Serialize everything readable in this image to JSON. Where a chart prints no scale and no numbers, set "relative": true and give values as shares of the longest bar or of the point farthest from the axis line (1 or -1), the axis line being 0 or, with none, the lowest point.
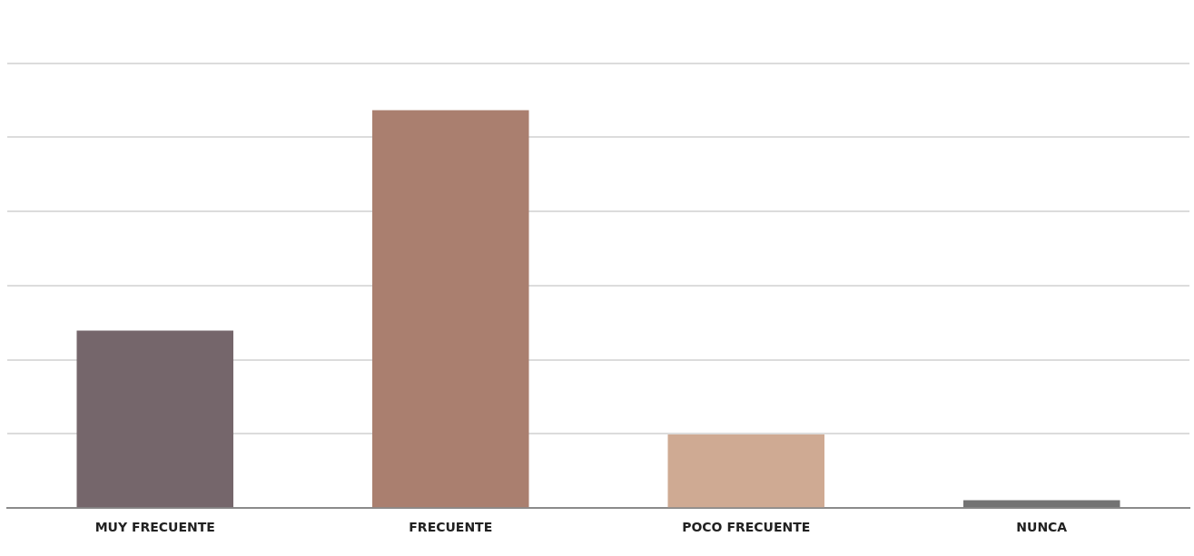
{
  "chart_data": {
    "type": "bar",
    "relative": true,
    "categories": [
      "MUY FRECUENTE",
      "FRECUENTE",
      "POCO FRECUENTE",
      "NUNCA"
    ],
    "values": [
      0.446,
      1,
      0.185,
      0.02
    ],
    "colors": [
      "#75666b",
      "#aa7f6f",
      "#cfaa93",
      "#737373"
    ],
    "grid": "y",
    "legend": false
  }
}
